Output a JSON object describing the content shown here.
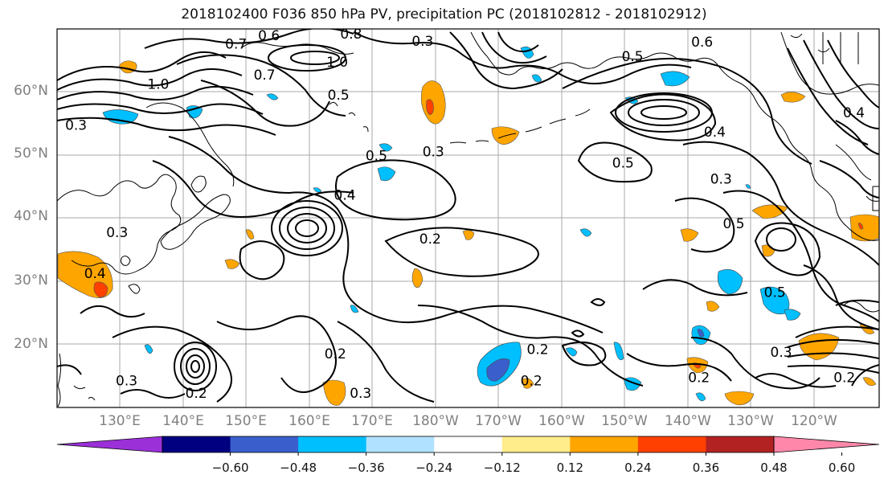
{
  "title": "2018102400 F036 850 hPa PV, precipitation PC (2018102812 - 2018102912)",
  "lat_labels": [
    "60°N",
    "50°N",
    "40°N",
    "30°N",
    "20°N"
  ],
  "lon_labels": [
    "130°E",
    "140°E",
    "150°E",
    "160°E",
    "170°E",
    "180°W",
    "170°W",
    "160°W",
    "150°W",
    "140°W",
    "130°W",
    "120°W"
  ],
  "colorbar": {
    "ticks": [
      "−0.60",
      "−0.48",
      "−0.36",
      "−0.24",
      "−0.12",
      "0.12",
      "0.24",
      "0.36",
      "0.48",
      "0.60"
    ],
    "colors": [
      "#9b30d9",
      "#000080",
      "#3a5fcd",
      "#00bfff",
      "#b0e2ff",
      "#ffffff",
      "#ffec8b",
      "#ffa500",
      "#ff4000",
      "#b22222",
      "#ff88aa"
    ]
  },
  "contour_labels": [
    {
      "text": "0.6",
      "lon": 153.5,
      "lat": 68.2
    },
    {
      "text": "0.7",
      "lon": 148.3,
      "lat": 66.9
    },
    {
      "text": "0.8",
      "lon": 166.5,
      "lat": 68.5
    },
    {
      "text": "1.0",
      "lon": 164.3,
      "lat": 64.0
    },
    {
      "text": "0.7",
      "lon": 152.8,
      "lat": 62.0
    },
    {
      "text": "0.3",
      "lon": 177.8,
      "lat": 67.3
    },
    {
      "text": "0.5",
      "lon": 211.0,
      "lat": 64.9
    },
    {
      "text": "0.6",
      "lon": 222.0,
      "lat": 67.2
    },
    {
      "text": "1.0",
      "lon": 136.0,
      "lat": 60.5
    },
    {
      "text": "0.3",
      "lon": 123.0,
      "lat": 54.0
    },
    {
      "text": "0.5",
      "lon": 164.5,
      "lat": 58.8
    },
    {
      "text": "0.5",
      "lon": 170.5,
      "lat": 49.2
    },
    {
      "text": "0.3",
      "lon": 179.5,
      "lat": 49.8
    },
    {
      "text": "0.4",
      "lon": 165.5,
      "lat": 42.9
    },
    {
      "text": "0.4",
      "lon": 224.0,
      "lat": 52.9
    },
    {
      "text": "0.5",
      "lon": 209.5,
      "lat": 48.0
    },
    {
      "text": "0.3",
      "lon": 225.0,
      "lat": 45.5
    },
    {
      "text": "0.5",
      "lon": 227.0,
      "lat": 38.4
    },
    {
      "text": "0.3",
      "lon": 129.5,
      "lat": 37.0
    },
    {
      "text": "0.4",
      "lon": 126.0,
      "lat": 30.5
    },
    {
      "text": "0.2",
      "lon": 179.0,
      "lat": 36.0
    },
    {
      "text": "0.2",
      "lon": 164.0,
      "lat": 17.8
    },
    {
      "text": "0.2",
      "lon": 196.0,
      "lat": 18.5
    },
    {
      "text": "0.2",
      "lon": 221.5,
      "lat": 14.0
    },
    {
      "text": "0.2",
      "lon": 195.0,
      "lat": 13.5
    },
    {
      "text": "0.3",
      "lon": 131.0,
      "lat": 13.5
    },
    {
      "text": "0.2",
      "lon": 142.0,
      "lat": 11.5
    },
    {
      "text": "0.3",
      "lon": 168.0,
      "lat": 11.5
    },
    {
      "text": "0.5",
      "lon": 233.5,
      "lat": 27.5
    },
    {
      "text": "0.3",
      "lon": 234.5,
      "lat": 18.0
    },
    {
      "text": "0.2",
      "lon": 244.5,
      "lat": 14.0
    },
    {
      "text": "0.4",
      "lon": 246.0,
      "lat": 56.0
    }
  ]
}
